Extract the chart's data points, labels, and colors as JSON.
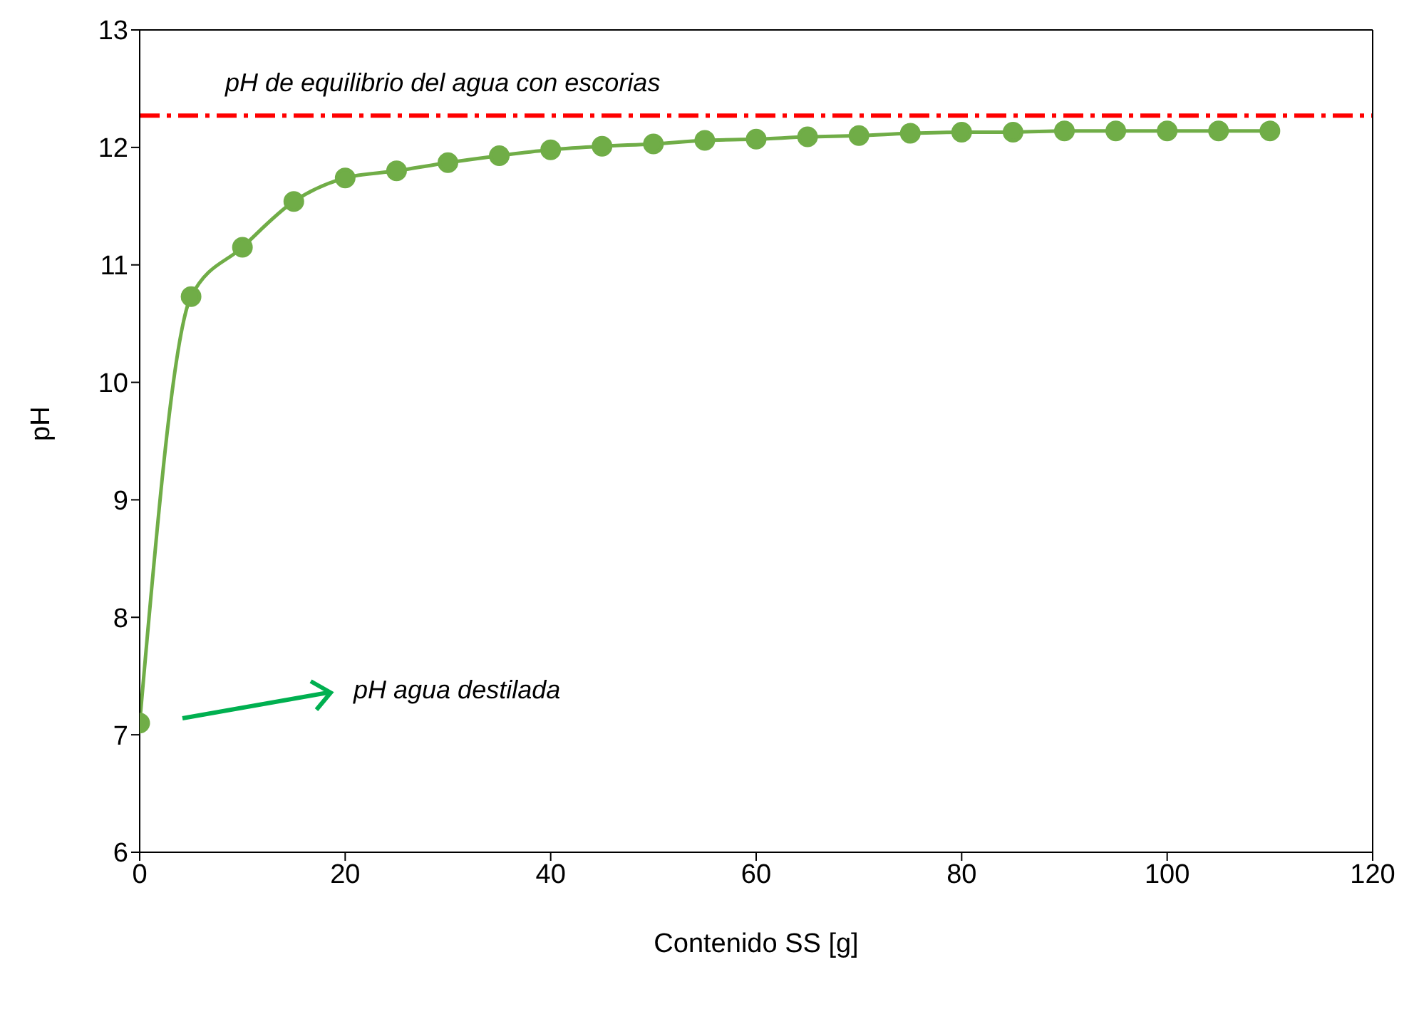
{
  "chart_data": {
    "type": "line",
    "xlabel": "Contenido SS [g]",
    "ylabel": "pH",
    "x": [
      0,
      5,
      10,
      15,
      20,
      25,
      30,
      35,
      40,
      45,
      50,
      55,
      60,
      65,
      70,
      75,
      80,
      85,
      90,
      95,
      100,
      105,
      110
    ],
    "series": [
      {
        "color": "#70ad47",
        "values": [
          7.1,
          10.73,
          11.15,
          11.54,
          11.74,
          11.8,
          11.87,
          11.93,
          11.98,
          12.01,
          12.03,
          12.06,
          12.07,
          12.09,
          12.1,
          12.12,
          12.13,
          12.13,
          12.14,
          12.14,
          12.14,
          12.14,
          12.14
        ]
      }
    ],
    "xlim": [
      0,
      120
    ],
    "xticks": [
      0,
      20,
      40,
      60,
      80,
      100,
      120
    ],
    "ylim": [
      6,
      13
    ],
    "yticks": [
      6,
      7,
      8,
      9,
      10,
      11,
      12,
      13
    ],
    "marker": "circle",
    "line_style": "solid",
    "grid": false,
    "legend": false,
    "ref_lines": [
      {
        "axis": "y",
        "value": 12.27,
        "label": "pH de equilibrio del agua con escorias",
        "color": "#ff0000",
        "line_style": "dashdot"
      }
    ],
    "annotations": [
      "pH agua destilada"
    ]
  }
}
